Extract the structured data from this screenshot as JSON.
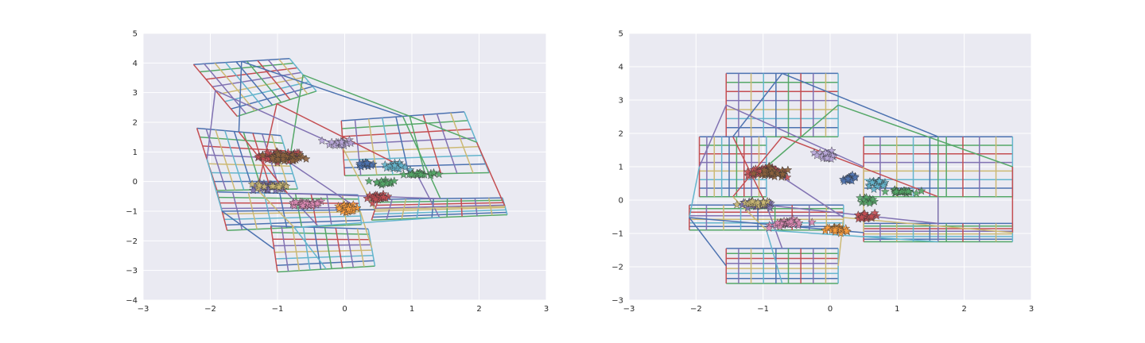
{
  "figure": {
    "background": "#ffffff",
    "plot_background": "#eaeaf2",
    "grid_color": "#ffffff",
    "palette": [
      "#4c72b0",
      "#55a868",
      "#c44e52",
      "#8172b2",
      "#ccb974",
      "#64b5cd"
    ]
  },
  "chart_data": [
    {
      "type": "scatter",
      "title": "",
      "xlabel": "",
      "ylabel": "",
      "xlim": [
        -3,
        3
      ],
      "ylim": [
        -4,
        5
      ],
      "xticks": [
        "−3",
        "−2",
        "−1",
        "0",
        "1",
        "2",
        "3"
      ],
      "yticks": [
        "−4",
        "−3",
        "−2",
        "−1",
        "0",
        "1",
        "2",
        "3",
        "4",
        "5"
      ],
      "xtick_values": [
        -3,
        -2,
        -1,
        0,
        1,
        2,
        3
      ],
      "ytick_values": [
        -4,
        -3,
        -2,
        -1,
        0,
        1,
        2,
        3,
        4,
        5
      ],
      "grid": true,
      "marker": "star",
      "clusters": [
        {
          "center": [
            -0.95,
            0.85
          ],
          "spread": [
            0.3,
            0.15
          ],
          "color": "#c44e52",
          "count": 50
        },
        {
          "center": [
            -0.9,
            0.8
          ],
          "spread": [
            0.28,
            0.13
          ],
          "color": "#8c613c",
          "count": 30
        },
        {
          "center": [
            -1.1,
            -0.2
          ],
          "spread": [
            0.25,
            0.12
          ],
          "color": "#8172b2",
          "count": 30
        },
        {
          "center": [
            -1.1,
            -0.15
          ],
          "spread": [
            0.22,
            0.1
          ],
          "color": "#ccb974",
          "count": 16
        },
        {
          "center": [
            -0.6,
            -0.75
          ],
          "spread": [
            0.3,
            0.1
          ],
          "color": "#dd8ab4",
          "count": 30
        },
        {
          "center": [
            -0.05,
            1.3
          ],
          "spread": [
            0.15,
            0.12
          ],
          "color": "#b8a6d9",
          "count": 20
        },
        {
          "center": [
            0.3,
            0.6
          ],
          "spread": [
            0.1,
            0.08
          ],
          "color": "#4c72b0",
          "count": 16
        },
        {
          "center": [
            0.75,
            0.5
          ],
          "spread": [
            0.15,
            0.1
          ],
          "color": "#64b5cd",
          "count": 24
        },
        {
          "center": [
            1.1,
            0.25
          ],
          "spread": [
            0.2,
            0.05
          ],
          "color": "#55a868",
          "count": 24
        },
        {
          "center": [
            0.6,
            0.0
          ],
          "spread": [
            0.15,
            0.1
          ],
          "color": "#55a868",
          "count": 14
        },
        {
          "center": [
            0.5,
            -0.55
          ],
          "spread": [
            0.15,
            0.1
          ],
          "color": "#c44e52",
          "count": 24
        },
        {
          "center": [
            0.05,
            -0.9
          ],
          "spread": [
            0.15,
            0.1
          ],
          "color": "#ff9f3c",
          "count": 30
        }
      ],
      "grid_mesh": {
        "cols": 9,
        "rows": 7,
        "panels": [
          [
            [
              -2.25,
              3.95
            ],
            [
              -0.82,
              4.15
            ],
            [
              -0.42,
              3.05
            ],
            [
              -1.6,
              2.2
            ]
          ],
          [
            [
              -0.05,
              2.05
            ],
            [
              1.78,
              2.35
            ],
            [
              2.15,
              0.3
            ],
            [
              0.0,
              0.2
            ]
          ],
          [
            [
              -2.2,
              1.8
            ],
            [
              -0.95,
              1.55
            ],
            [
              -0.7,
              -0.25
            ],
            [
              -1.9,
              -0.3
            ]
          ],
          [
            [
              -1.9,
              -0.35
            ],
            [
              0.2,
              -0.45
            ],
            [
              0.25,
              -1.45
            ],
            [
              -1.75,
              -1.65
            ]
          ],
          [
            [
              0.5,
              -0.6
            ],
            [
              2.35,
              -0.55
            ],
            [
              2.42,
              -1.12
            ],
            [
              0.4,
              -1.3
            ]
          ],
          [
            [
              -1.1,
              -1.5
            ],
            [
              0.35,
              -1.6
            ],
            [
              0.45,
              -2.85
            ],
            [
              -1.0,
              -3.05
            ]
          ]
        ]
      }
    },
    {
      "type": "scatter",
      "title": "",
      "xlabel": "",
      "ylabel": "",
      "xlim": [
        -3,
        3
      ],
      "ylim": [
        -3,
        5
      ],
      "xticks": [
        "−3",
        "−2",
        "−1",
        "0",
        "1",
        "2",
        "3"
      ],
      "yticks": [
        "−3",
        "−2",
        "−1",
        "0",
        "1",
        "2",
        "3",
        "4",
        "5"
      ],
      "xtick_values": [
        -3,
        -2,
        -1,
        0,
        1,
        2,
        3
      ],
      "ytick_values": [
        -3,
        -2,
        -1,
        0,
        1,
        2,
        3,
        4,
        5
      ],
      "grid": true,
      "marker": "star",
      "clusters": [
        {
          "center": [
            -0.95,
            0.85
          ],
          "spread": [
            0.25,
            0.12
          ],
          "color": "#c44e52",
          "count": 50
        },
        {
          "center": [
            -0.85,
            0.8
          ],
          "spread": [
            0.25,
            0.12
          ],
          "color": "#8c613c",
          "count": 30
        },
        {
          "center": [
            -1.1,
            -0.15
          ],
          "spread": [
            0.25,
            0.1
          ],
          "color": "#8172b2",
          "count": 30
        },
        {
          "center": [
            -1.1,
            -0.1
          ],
          "spread": [
            0.2,
            0.08
          ],
          "color": "#ccb974",
          "count": 16
        },
        {
          "center": [
            -0.6,
            -0.7
          ],
          "spread": [
            0.25,
            0.1
          ],
          "color": "#dd8ab4",
          "count": 30
        },
        {
          "center": [
            -0.05,
            1.35
          ],
          "spread": [
            0.12,
            0.12
          ],
          "color": "#b8a6d9",
          "count": 20
        },
        {
          "center": [
            0.3,
            0.65
          ],
          "spread": [
            0.1,
            0.08
          ],
          "color": "#4c72b0",
          "count": 16
        },
        {
          "center": [
            0.7,
            0.5
          ],
          "spread": [
            0.15,
            0.08
          ],
          "color": "#64b5cd",
          "count": 24
        },
        {
          "center": [
            1.05,
            0.25
          ],
          "spread": [
            0.18,
            0.05
          ],
          "color": "#55a868",
          "count": 24
        },
        {
          "center": [
            0.55,
            0.0
          ],
          "spread": [
            0.12,
            0.08
          ],
          "color": "#55a868",
          "count": 14
        },
        {
          "center": [
            0.5,
            -0.5
          ],
          "spread": [
            0.15,
            0.1
          ],
          "color": "#c44e52",
          "count": 24
        },
        {
          "center": [
            0.1,
            -0.9
          ],
          "spread": [
            0.15,
            0.1
          ],
          "color": "#ff9f3c",
          "count": 30
        }
      ],
      "grid_mesh": {
        "cols": 9,
        "rows": 7,
        "panels": [
          [
            [
              -1.55,
              3.8
            ],
            [
              0.12,
              3.8
            ],
            [
              0.12,
              1.9
            ],
            [
              -1.55,
              1.9
            ]
          ],
          [
            [
              0.5,
              1.9
            ],
            [
              2.72,
              1.9
            ],
            [
              2.72,
              0.1
            ],
            [
              0.5,
              0.1
            ]
          ],
          [
            [
              -1.95,
              1.9
            ],
            [
              -0.95,
              1.9
            ],
            [
              -0.95,
              0.1
            ],
            [
              -1.95,
              0.1
            ]
          ],
          [
            [
              -2.1,
              -0.15
            ],
            [
              0.2,
              -0.15
            ],
            [
              0.2,
              -0.9
            ],
            [
              -2.1,
              -0.9
            ]
          ],
          [
            [
              0.5,
              -0.7
            ],
            [
              2.72,
              -0.7
            ],
            [
              2.72,
              -1.25
            ],
            [
              0.5,
              -1.25
            ]
          ],
          [
            [
              -1.55,
              -1.45
            ],
            [
              0.12,
              -1.45
            ],
            [
              0.12,
              -2.5
            ],
            [
              -1.55,
              -2.5
            ]
          ]
        ]
      }
    }
  ]
}
